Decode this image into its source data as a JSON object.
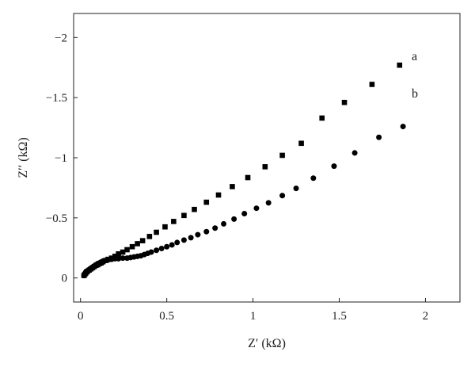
{
  "chart_data": {
    "type": "scatter",
    "xlabel": "Z′ (kΩ)",
    "ylabel": "Z′′ (kΩ)",
    "xlim": [
      -0.04,
      2.2
    ],
    "ylim": [
      0.2,
      -2.2
    ],
    "x_ticks": [
      0,
      0.5,
      1,
      1.5,
      2
    ],
    "x_tick_labels": [
      "0",
      "0.5",
      "1",
      "1.5",
      "2"
    ],
    "y_ticks": [
      0,
      -0.5,
      -1,
      -1.5,
      -2
    ],
    "y_tick_labels": [
      "0",
      "−0.5",
      "−1",
      "−1.5",
      "−2"
    ],
    "grid": false,
    "legend": "none",
    "series": [
      {
        "name": "a",
        "marker": "square",
        "color": "#000000",
        "x": [
          0.02,
          0.025,
          0.03,
          0.035,
          0.04,
          0.05,
          0.06,
          0.07,
          0.08,
          0.09,
          0.1,
          0.11,
          0.12,
          0.13,
          0.145,
          0.16,
          0.18,
          0.2,
          0.22,
          0.245,
          0.27,
          0.3,
          0.33,
          0.36,
          0.4,
          0.44,
          0.49,
          0.54,
          0.6,
          0.66,
          0.73,
          0.8,
          0.88,
          0.97,
          1.07,
          1.17,
          1.28,
          1.4,
          1.53,
          1.69,
          1.85
        ],
        "y": [
          -0.02,
          -0.03,
          -0.04,
          -0.05,
          -0.055,
          -0.065,
          -0.075,
          -0.085,
          -0.095,
          -0.105,
          -0.11,
          -0.12,
          -0.125,
          -0.135,
          -0.145,
          -0.155,
          -0.165,
          -0.18,
          -0.2,
          -0.215,
          -0.235,
          -0.26,
          -0.285,
          -0.31,
          -0.345,
          -0.38,
          -0.425,
          -0.47,
          -0.52,
          -0.57,
          -0.63,
          -0.69,
          -0.76,
          -0.835,
          -0.925,
          -1.02,
          -1.12,
          -1.33,
          -1.46,
          -1.61,
          -1.77
        ]
      },
      {
        "name": "b",
        "marker": "circle",
        "color": "#000000",
        "x": [
          0.02,
          0.025,
          0.03,
          0.035,
          0.04,
          0.05,
          0.06,
          0.07,
          0.08,
          0.09,
          0.1,
          0.115,
          0.13,
          0.145,
          0.16,
          0.18,
          0.2,
          0.22,
          0.245,
          0.27,
          0.29,
          0.31,
          0.33,
          0.35,
          0.37,
          0.39,
          0.41,
          0.44,
          0.47,
          0.5,
          0.53,
          0.56,
          0.6,
          0.64,
          0.68,
          0.73,
          0.78,
          0.83,
          0.89,
          0.95,
          1.02,
          1.09,
          1.17,
          1.25,
          1.35,
          1.47,
          1.59,
          1.73,
          1.87
        ],
        "y": [
          -0.02,
          -0.03,
          -0.04,
          -0.05,
          -0.06,
          -0.07,
          -0.08,
          -0.09,
          -0.1,
          -0.11,
          -0.12,
          -0.13,
          -0.14,
          -0.145,
          -0.15,
          -0.155,
          -0.16,
          -0.16,
          -0.165,
          -0.165,
          -0.17,
          -0.175,
          -0.18,
          -0.185,
          -0.195,
          -0.205,
          -0.215,
          -0.23,
          -0.245,
          -0.26,
          -0.275,
          -0.295,
          -0.315,
          -0.335,
          -0.36,
          -0.385,
          -0.415,
          -0.45,
          -0.49,
          -0.535,
          -0.58,
          -0.625,
          -0.685,
          -0.745,
          -0.83,
          -0.93,
          -1.04,
          -1.17,
          -1.26
        ]
      }
    ]
  }
}
